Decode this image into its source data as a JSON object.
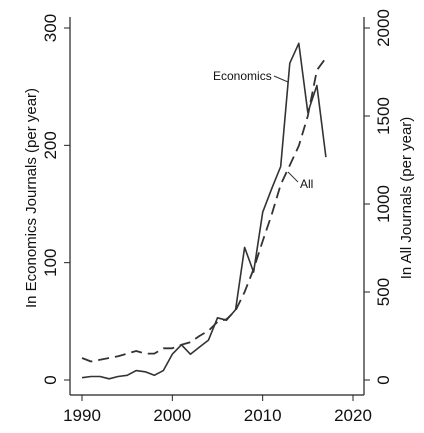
{
  "chart_data": {
    "type": "line",
    "title": "",
    "xlabel": "",
    "ylabel_left": "In Economics Journals (per year)",
    "ylabel_right": "In All Journals (per year)",
    "xlim": [
      1990,
      2020
    ],
    "ylim_left": [
      0,
      300
    ],
    "ylim_right": [
      0,
      2000
    ],
    "x_ticks": [
      1990,
      2000,
      2010,
      2020
    ],
    "y_ticks_left": [
      0,
      100,
      200,
      300
    ],
    "y_ticks_right": [
      0,
      500,
      1000,
      1500,
      2000
    ],
    "grid": false,
    "legend": "none",
    "series": [
      {
        "name": "Economics",
        "axis": "left",
        "style": "solid",
        "x": [
          1990,
          1991,
          1992,
          1993,
          1994,
          1995,
          1996,
          1997,
          1998,
          1999,
          2000,
          2001,
          2002,
          2003,
          2004,
          2005,
          2006,
          2007,
          2008,
          2009,
          2010,
          2011,
          2012,
          2013,
          2014,
          2015,
          2016,
          2017
        ],
        "values": [
          2,
          3,
          3,
          1,
          3,
          4,
          8,
          7,
          4,
          8,
          22,
          30,
          22,
          28,
          34,
          53,
          51,
          60,
          113,
          92,
          143,
          163,
          182,
          270,
          287,
          228,
          251,
          190
        ]
      },
      {
        "name": "All",
        "axis": "right",
        "style": "dashed",
        "x": [
          1990,
          1991,
          1992,
          1993,
          1994,
          1995,
          1996,
          1997,
          1998,
          1999,
          2000,
          2001,
          2002,
          2003,
          2004,
          2005,
          2006,
          2007,
          2008,
          2009,
          2010,
          2011,
          2012,
          2013,
          2014,
          2015,
          2016,
          2017
        ],
        "values": [
          125,
          105,
          115,
          125,
          135,
          150,
          165,
          150,
          150,
          180,
          180,
          200,
          215,
          250,
          280,
          330,
          345,
          395,
          500,
          630,
          790,
          940,
          1110,
          1220,
          1330,
          1500,
          1760,
          1830
        ]
      }
    ],
    "annotations": [
      {
        "text": "Economics",
        "series": "Economics"
      },
      {
        "text": "All",
        "series": "All"
      }
    ]
  }
}
